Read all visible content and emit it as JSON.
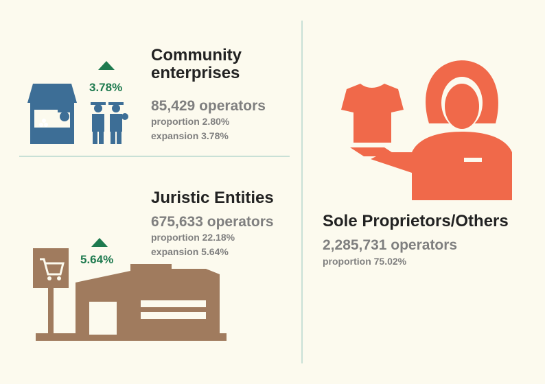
{
  "sections": [
    {
      "title_lines": [
        "Community",
        "enterprises"
      ],
      "badge": "3.78%",
      "operators": "85,429 operators",
      "proportion": "proportion 2.80%",
      "expansion": "expansion 3.78%"
    },
    {
      "title_lines": [
        "Juristic Entities"
      ],
      "badge": "5.64%",
      "operators": "675,633 operators",
      "proportion": "proportion 22.18%",
      "expansion": "expansion 5.64%"
    },
    {
      "title_lines": [
        "Sole Proprietors/Others"
      ],
      "operators": "2,285,731 operators",
      "proportion": "proportion 75.02%"
    }
  ]
}
